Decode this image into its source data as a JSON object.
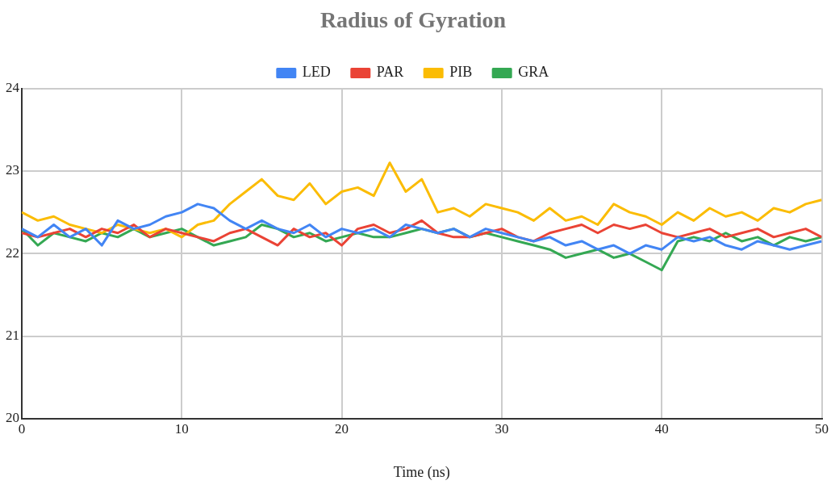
{
  "chart_data": {
    "type": "line",
    "title": "Radius of Gyration",
    "xlabel": "Time (ns)",
    "x": [
      0,
      1,
      2,
      3,
      4,
      5,
      6,
      7,
      8,
      9,
      10,
      11,
      12,
      13,
      14,
      15,
      16,
      17,
      18,
      19,
      20,
      21,
      22,
      23,
      24,
      25,
      26,
      27,
      28,
      29,
      30,
      31,
      32,
      33,
      34,
      35,
      36,
      37,
      38,
      39,
      40,
      41,
      42,
      43,
      44,
      45,
      46,
      47,
      48,
      49,
      50
    ],
    "series": [
      {
        "name": "LED",
        "color": "#4285f4",
        "values": [
          22.3,
          22.2,
          22.35,
          22.2,
          22.3,
          22.1,
          22.4,
          22.3,
          22.35,
          22.45,
          22.5,
          22.6,
          22.55,
          22.4,
          22.3,
          22.4,
          22.3,
          22.25,
          22.35,
          22.2,
          22.3,
          22.25,
          22.3,
          22.2,
          22.35,
          22.3,
          22.25,
          22.3,
          22.2,
          22.3,
          22.25,
          22.2,
          22.15,
          22.2,
          22.1,
          22.15,
          22.05,
          22.1,
          22.0,
          22.1,
          22.05,
          22.2,
          22.15,
          22.2,
          22.1,
          22.05,
          22.15,
          22.1,
          22.05,
          22.1,
          22.15
        ]
      },
      {
        "name": "PAR",
        "color": "#ea4335",
        "values": [
          22.25,
          22.2,
          22.25,
          22.3,
          22.2,
          22.3,
          22.25,
          22.35,
          22.2,
          22.3,
          22.25,
          22.2,
          22.15,
          22.25,
          22.3,
          22.2,
          22.1,
          22.3,
          22.2,
          22.25,
          22.1,
          22.3,
          22.35,
          22.25,
          22.3,
          22.4,
          22.25,
          22.2,
          22.2,
          22.25,
          22.3,
          22.2,
          22.15,
          22.25,
          22.3,
          22.35,
          22.25,
          22.35,
          22.3,
          22.35,
          22.25,
          22.2,
          22.25,
          22.3,
          22.2,
          22.25,
          22.3,
          22.2,
          22.25,
          22.3,
          22.2
        ]
      },
      {
        "name": "PIB",
        "color": "#fbbc04",
        "values": [
          22.5,
          22.4,
          22.45,
          22.35,
          22.3,
          22.25,
          22.35,
          22.3,
          22.25,
          22.3,
          22.2,
          22.35,
          22.4,
          22.6,
          22.75,
          22.9,
          22.7,
          22.65,
          22.85,
          22.6,
          22.75,
          22.8,
          22.7,
          23.1,
          22.75,
          22.9,
          22.5,
          22.55,
          22.45,
          22.6,
          22.55,
          22.5,
          22.4,
          22.55,
          22.4,
          22.45,
          22.35,
          22.6,
          22.5,
          22.45,
          22.35,
          22.5,
          22.4,
          22.55,
          22.45,
          22.5,
          22.4,
          22.55,
          22.5,
          22.6,
          22.65
        ]
      },
      {
        "name": "GRA",
        "color": "#34a853",
        "values": [
          22.3,
          22.1,
          22.25,
          22.2,
          22.15,
          22.25,
          22.2,
          22.3,
          22.2,
          22.25,
          22.3,
          22.2,
          22.1,
          22.15,
          22.2,
          22.35,
          22.3,
          22.2,
          22.25,
          22.15,
          22.2,
          22.25,
          22.2,
          22.2,
          22.25,
          22.3,
          22.25,
          22.3,
          22.2,
          22.25,
          22.2,
          22.15,
          22.1,
          22.05,
          21.95,
          22.0,
          22.05,
          21.95,
          22.0,
          21.9,
          21.8,
          22.15,
          22.2,
          22.15,
          22.25,
          22.15,
          22.2,
          22.1,
          22.2,
          22.15,
          22.2
        ]
      }
    ],
    "xlim": [
      0,
      50
    ],
    "xticks": [
      0,
      10,
      20,
      30,
      40,
      50
    ],
    "ylim": [
      20,
      24
    ],
    "yticks": [
      20,
      21,
      22,
      23,
      24
    ],
    "grid": true,
    "legend": "top",
    "marker": "none"
  }
}
